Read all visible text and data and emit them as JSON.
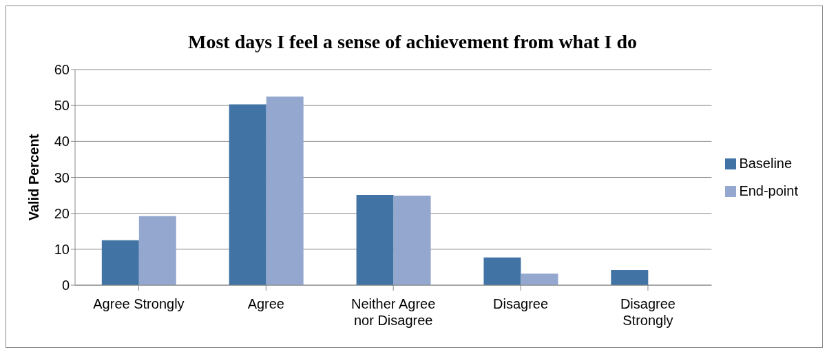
{
  "chart_data": {
    "type": "bar",
    "title": "Most days I feel a sense of achievement from what I do",
    "ylabel": "Valid Percent",
    "categories": [
      "Agree Strongly",
      "Agree",
      "Neither Agree nor Disagree",
      "Disagree",
      "Disagree Strongly"
    ],
    "series": [
      {
        "name": "Baseline",
        "color": "#4174a5",
        "values": [
          12.5,
          50.3,
          25.1,
          7.7,
          4.2
        ]
      },
      {
        "name": "End-point",
        "color": "#94a8cf",
        "values": [
          19.2,
          52.5,
          24.9,
          3.2,
          0
        ]
      }
    ],
    "ylim": [
      0,
      60
    ],
    "yticks": [
      0,
      10,
      20,
      30,
      40,
      50,
      60
    ],
    "grid": "y",
    "legend": "right"
  }
}
